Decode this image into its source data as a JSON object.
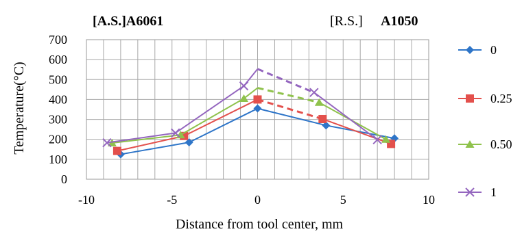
{
  "chart_data": {
    "type": "line",
    "header_left": "[A.S.]A6061",
    "header_right_prefix": "[R.S.]",
    "header_right_bold": "A1050",
    "xlabel": "Distance from tool center, mm",
    "ylabel": "Temperature(°C)",
    "xlim": [
      -10,
      10
    ],
    "ylim": [
      0,
      700
    ],
    "x_ticks": [
      -10,
      -5,
      0,
      5,
      10
    ],
    "y_ticks": [
      0,
      100,
      200,
      300,
      400,
      500,
      600,
      700
    ],
    "x_minor_step": 1,
    "grid": true,
    "legend_position": "right",
    "series": [
      {
        "name": "0",
        "color": "#2e75c8",
        "marker": "diamond",
        "points": [
          [
            -8,
            125
          ],
          [
            -4,
            185
          ],
          [
            0,
            355
          ],
          [
            4,
            270
          ],
          [
            8,
            205
          ]
        ],
        "dashed_segment": null
      },
      {
        "name": "0.25",
        "color": "#e3504c",
        "marker": "square",
        "points": [
          [
            -8.2,
            142
          ],
          [
            -4.3,
            217
          ],
          [
            0,
            400
          ],
          [
            3.8,
            302
          ],
          [
            7.8,
            177
          ]
        ],
        "dashed_segment": [
          2,
          3
        ]
      },
      {
        "name": "0.50",
        "color": "#8fc24c",
        "marker": "triangle",
        "points": [
          [
            -8.5,
            182
          ],
          [
            -4.5,
            222
          ],
          [
            -0.8,
            405
          ],
          [
            0,
            458
          ],
          [
            3.6,
            385
          ],
          [
            7.5,
            200
          ]
        ],
        "dashed_segment": [
          3,
          4
        ]
      },
      {
        "name": "1",
        "color": "#9466bf",
        "marker": "x",
        "points": [
          [
            -8.8,
            183
          ],
          [
            -4.8,
            232
          ],
          [
            -0.8,
            468
          ],
          [
            0,
            553
          ],
          [
            3.3,
            435
          ],
          [
            7,
            198
          ]
        ],
        "dashed_segment": [
          3,
          4
        ]
      }
    ]
  }
}
